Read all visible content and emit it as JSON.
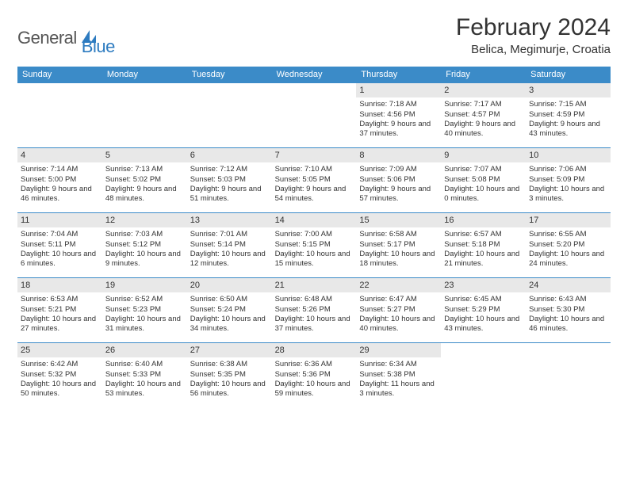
{
  "logo": {
    "general": "General",
    "blue": "Blue"
  },
  "header": {
    "month_title": "February 2024",
    "location": "Belica, Megimurje, Croatia"
  },
  "style": {
    "header_bg": "#3b8bc8",
    "header_text": "#ffffff",
    "cell_border": "#3b8bc8",
    "date_bg": "#e8e8e8",
    "logo_gray": "#555555",
    "logo_blue": "#2d7bc0",
    "body_text": "#333333",
    "title_fontsize": 30,
    "location_fontsize": 15,
    "dayheader_fontsize": 11,
    "cell_fontsize": 9.5
  },
  "day_names": [
    "Sunday",
    "Monday",
    "Tuesday",
    "Wednesday",
    "Thursday",
    "Friday",
    "Saturday"
  ],
  "leading_blanks": 4,
  "days": [
    {
      "n": 1,
      "sunrise": "7:18 AM",
      "sunset": "4:56 PM",
      "daylight": "9 hours and 37 minutes."
    },
    {
      "n": 2,
      "sunrise": "7:17 AM",
      "sunset": "4:57 PM",
      "daylight": "9 hours and 40 minutes."
    },
    {
      "n": 3,
      "sunrise": "7:15 AM",
      "sunset": "4:59 PM",
      "daylight": "9 hours and 43 minutes."
    },
    {
      "n": 4,
      "sunrise": "7:14 AM",
      "sunset": "5:00 PM",
      "daylight": "9 hours and 46 minutes."
    },
    {
      "n": 5,
      "sunrise": "7:13 AM",
      "sunset": "5:02 PM",
      "daylight": "9 hours and 48 minutes."
    },
    {
      "n": 6,
      "sunrise": "7:12 AM",
      "sunset": "5:03 PM",
      "daylight": "9 hours and 51 minutes."
    },
    {
      "n": 7,
      "sunrise": "7:10 AM",
      "sunset": "5:05 PM",
      "daylight": "9 hours and 54 minutes."
    },
    {
      "n": 8,
      "sunrise": "7:09 AM",
      "sunset": "5:06 PM",
      "daylight": "9 hours and 57 minutes."
    },
    {
      "n": 9,
      "sunrise": "7:07 AM",
      "sunset": "5:08 PM",
      "daylight": "10 hours and 0 minutes."
    },
    {
      "n": 10,
      "sunrise": "7:06 AM",
      "sunset": "5:09 PM",
      "daylight": "10 hours and 3 minutes."
    },
    {
      "n": 11,
      "sunrise": "7:04 AM",
      "sunset": "5:11 PM",
      "daylight": "10 hours and 6 minutes."
    },
    {
      "n": 12,
      "sunrise": "7:03 AM",
      "sunset": "5:12 PM",
      "daylight": "10 hours and 9 minutes."
    },
    {
      "n": 13,
      "sunrise": "7:01 AM",
      "sunset": "5:14 PM",
      "daylight": "10 hours and 12 minutes."
    },
    {
      "n": 14,
      "sunrise": "7:00 AM",
      "sunset": "5:15 PM",
      "daylight": "10 hours and 15 minutes."
    },
    {
      "n": 15,
      "sunrise": "6:58 AM",
      "sunset": "5:17 PM",
      "daylight": "10 hours and 18 minutes."
    },
    {
      "n": 16,
      "sunrise": "6:57 AM",
      "sunset": "5:18 PM",
      "daylight": "10 hours and 21 minutes."
    },
    {
      "n": 17,
      "sunrise": "6:55 AM",
      "sunset": "5:20 PM",
      "daylight": "10 hours and 24 minutes."
    },
    {
      "n": 18,
      "sunrise": "6:53 AM",
      "sunset": "5:21 PM",
      "daylight": "10 hours and 27 minutes."
    },
    {
      "n": 19,
      "sunrise": "6:52 AM",
      "sunset": "5:23 PM",
      "daylight": "10 hours and 31 minutes."
    },
    {
      "n": 20,
      "sunrise": "6:50 AM",
      "sunset": "5:24 PM",
      "daylight": "10 hours and 34 minutes."
    },
    {
      "n": 21,
      "sunrise": "6:48 AM",
      "sunset": "5:26 PM",
      "daylight": "10 hours and 37 minutes."
    },
    {
      "n": 22,
      "sunrise": "6:47 AM",
      "sunset": "5:27 PM",
      "daylight": "10 hours and 40 minutes."
    },
    {
      "n": 23,
      "sunrise": "6:45 AM",
      "sunset": "5:29 PM",
      "daylight": "10 hours and 43 minutes."
    },
    {
      "n": 24,
      "sunrise": "6:43 AM",
      "sunset": "5:30 PM",
      "daylight": "10 hours and 46 minutes."
    },
    {
      "n": 25,
      "sunrise": "6:42 AM",
      "sunset": "5:32 PM",
      "daylight": "10 hours and 50 minutes."
    },
    {
      "n": 26,
      "sunrise": "6:40 AM",
      "sunset": "5:33 PM",
      "daylight": "10 hours and 53 minutes."
    },
    {
      "n": 27,
      "sunrise": "6:38 AM",
      "sunset": "5:35 PM",
      "daylight": "10 hours and 56 minutes."
    },
    {
      "n": 28,
      "sunrise": "6:36 AM",
      "sunset": "5:36 PM",
      "daylight": "10 hours and 59 minutes."
    },
    {
      "n": 29,
      "sunrise": "6:34 AM",
      "sunset": "5:38 PM",
      "daylight": "11 hours and 3 minutes."
    }
  ]
}
